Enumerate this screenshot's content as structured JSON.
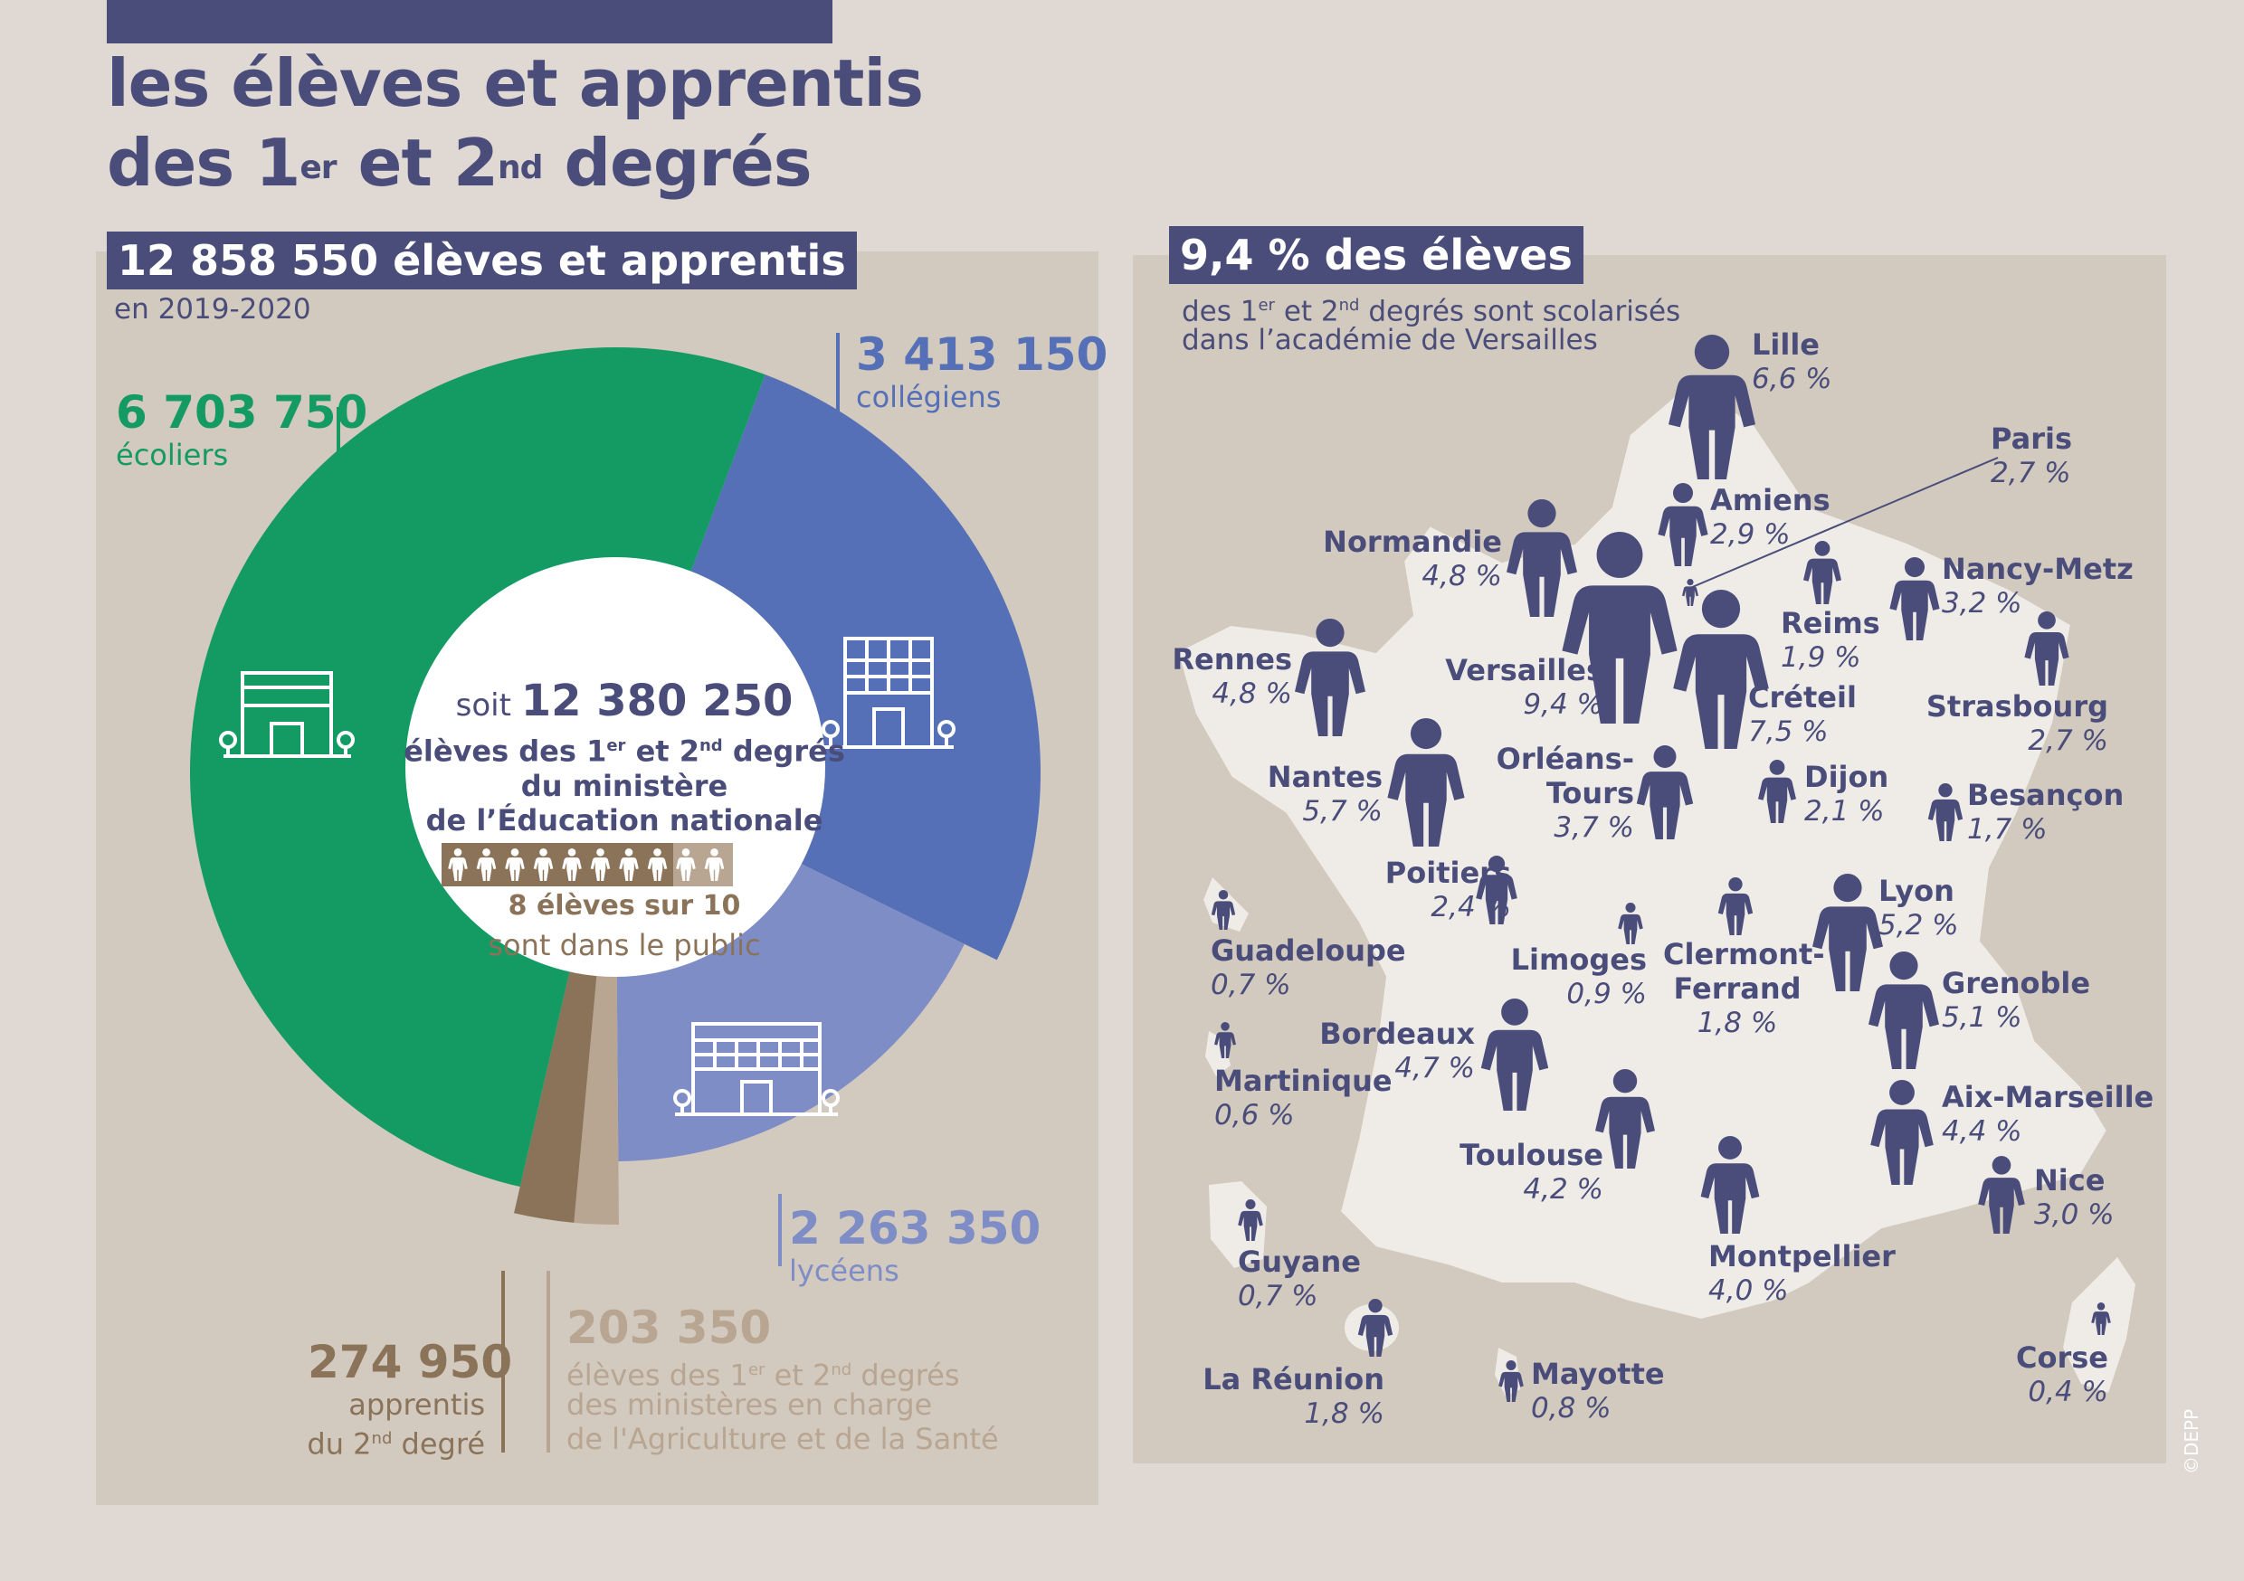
{
  "title": {
    "line1": "les élèves et apprentis",
    "line2_a": "des 1",
    "line2_sup1": "er",
    "line2_b": " et 2",
    "line2_sup2": "nd",
    "line2_c": " degrés"
  },
  "left": {
    "badge": "12 858 550 élèves et apprentis",
    "subtitle": "en 2019-2020",
    "center": {
      "prefix": "soit ",
      "number": "12 380 250",
      "l2_a": "élèves des 1",
      "l2_sup1": "er",
      "l2_b": " et 2",
      "l2_sup2": "nd",
      "l2_c": " degrés",
      "l3": "du ministère",
      "l4": "de l’Éducation nationale",
      "public_title": "8 élèves sur 10",
      "public_sub": "sont dans le public"
    },
    "labels": {
      "ecoliers_value": "6 703 750",
      "ecoliers_label": "écoliers",
      "colleg_value": "3 413 150",
      "colleg_label": "collégiens",
      "lycee_value": "2 263 350",
      "lycee_label": "lycéens",
      "apprentis_value": "274 950",
      "apprentis_l1": "apprentis",
      "apprentis_l2a": "du 2",
      "apprentis_sup": "nd",
      "apprentis_l2b": " degré",
      "agri_value": "203 350",
      "agri_l1a": "élèves des 1",
      "agri_sup1": "er",
      "agri_l1b": " et 2",
      "agri_sup2": "nd",
      "agri_l1c": " degrés",
      "agri_l2": "des ministères en charge",
      "agri_l3": "de l'Agriculture et de la Santé"
    }
  },
  "right": {
    "badge": "9,4 % des élèves",
    "sub1_a": "des 1",
    "sub1_sup1": "er",
    "sub1_b": " et 2",
    "sub1_sup2": "nd",
    "sub1_c": " degrés sont scolarisés",
    "sub2": "dans l’académie de Versailles",
    "academies": [
      {
        "name": "Lille",
        "pct": "6,6 %"
      },
      {
        "name": "Paris",
        "pct": "2,7 %"
      },
      {
        "name": "Amiens",
        "pct": "2,9 %"
      },
      {
        "name": "Normandie",
        "pct": "4,8 %"
      },
      {
        "name": "Nancy-Metz",
        "pct": "3,2 %"
      },
      {
        "name": "Reims",
        "pct": "1,9 %"
      },
      {
        "name": "Rennes",
        "pct": "4,8 %"
      },
      {
        "name": "Versailles",
        "pct": "9,4 %"
      },
      {
        "name": "Créteil",
        "pct": "7,5 %"
      },
      {
        "name": "Strasbourg",
        "pct": "2,7 %"
      },
      {
        "name": "Nantes",
        "pct": "5,7 %"
      },
      {
        "name": "Orléans-",
        "name2": "Tours",
        "pct": "3,7 %"
      },
      {
        "name": "Dijon",
        "pct": "2,1 %"
      },
      {
        "name": "Besançon",
        "pct": "1,7 %"
      },
      {
        "name": "Poitiers",
        "pct": "2,4 %"
      },
      {
        "name": "Lyon",
        "pct": "5,2 %"
      },
      {
        "name": "Guadeloupe",
        "pct": "0,7 %"
      },
      {
        "name": "Limoges",
        "pct": "0,9 %"
      },
      {
        "name": "Clermont-",
        "name2": "Ferrand",
        "pct": "1,8 %"
      },
      {
        "name": "Grenoble",
        "pct": "5,1 %"
      },
      {
        "name": "Bordeaux",
        "pct": "4,7 %"
      },
      {
        "name": "Martinique",
        "pct": "0,6 %"
      },
      {
        "name": "Aix-Marseille",
        "pct": "4,4 %"
      },
      {
        "name": "Toulouse",
        "pct": "4,2 %"
      },
      {
        "name": "Nice",
        "pct": "3,0 %"
      },
      {
        "name": "Guyane",
        "pct": "0,7 %"
      },
      {
        "name": "Montpellier",
        "pct": "4,0 %"
      },
      {
        "name": "La Réunion",
        "pct": "1,8 %"
      },
      {
        "name": "Mayotte",
        "pct": "0,8 %"
      },
      {
        "name": "Corse",
        "pct": "0,4 %"
      }
    ]
  },
  "copyright": "©DEPP",
  "colors": {
    "ecoliers": "#149b63",
    "colleg": "#5570b6",
    "lycee": "#7e8dc6",
    "apprentis": "#8a7358",
    "agri": "#b8a592",
    "navy": "#4a4d7a"
  },
  "chart_data": {
    "type": "pie",
    "title": "12 858 550 élèves et apprentis",
    "subtitle": "en 2019-2020",
    "categories": [
      "écoliers",
      "collégiens",
      "lycéens",
      "élèves des 1er et 2nd degrés des ministères en charge de l'Agriculture et de la Santé",
      "apprentis du 2nd degré"
    ],
    "values": [
      6703750,
      3413150,
      2263350,
      203350,
      274950
    ]
  }
}
